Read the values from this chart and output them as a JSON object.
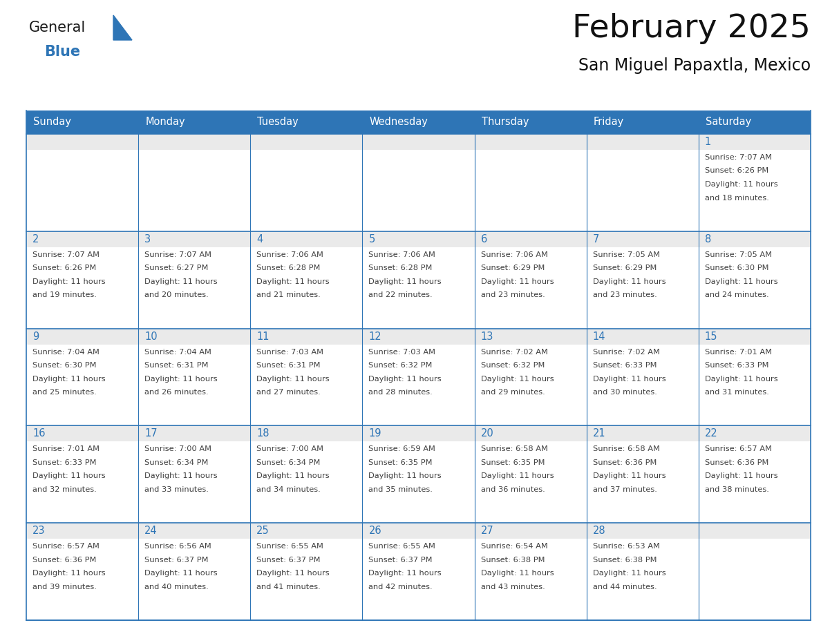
{
  "title": "February 2025",
  "subtitle": "San Miguel Papaxtla, Mexico",
  "header_bg": "#2E75B6",
  "header_text_color": "#FFFFFF",
  "header_days": [
    "Sunday",
    "Monday",
    "Tuesday",
    "Wednesday",
    "Thursday",
    "Friday",
    "Saturday"
  ],
  "cell_border_color": "#2E75B6",
  "day_number_color": "#2E75B6",
  "cell_text_color": "#404040",
  "day_strip_color": "#EAEAEA",
  "background_color": "#FFFFFF",
  "logo_general_color": "#1a1a1a",
  "logo_blue_color": "#2E75B6",
  "calendar_data": [
    [
      null,
      null,
      null,
      null,
      null,
      null,
      {
        "day": 1,
        "sunrise": "7:07 AM",
        "sunset": "6:26 PM",
        "daylight_hours": 11,
        "daylight_minutes": 18
      }
    ],
    [
      {
        "day": 2,
        "sunrise": "7:07 AM",
        "sunset": "6:26 PM",
        "daylight_hours": 11,
        "daylight_minutes": 19
      },
      {
        "day": 3,
        "sunrise": "7:07 AM",
        "sunset": "6:27 PM",
        "daylight_hours": 11,
        "daylight_minutes": 20
      },
      {
        "day": 4,
        "sunrise": "7:06 AM",
        "sunset": "6:28 PM",
        "daylight_hours": 11,
        "daylight_minutes": 21
      },
      {
        "day": 5,
        "sunrise": "7:06 AM",
        "sunset": "6:28 PM",
        "daylight_hours": 11,
        "daylight_minutes": 22
      },
      {
        "day": 6,
        "sunrise": "7:06 AM",
        "sunset": "6:29 PM",
        "daylight_hours": 11,
        "daylight_minutes": 23
      },
      {
        "day": 7,
        "sunrise": "7:05 AM",
        "sunset": "6:29 PM",
        "daylight_hours": 11,
        "daylight_minutes": 23
      },
      {
        "day": 8,
        "sunrise": "7:05 AM",
        "sunset": "6:30 PM",
        "daylight_hours": 11,
        "daylight_minutes": 24
      }
    ],
    [
      {
        "day": 9,
        "sunrise": "7:04 AM",
        "sunset": "6:30 PM",
        "daylight_hours": 11,
        "daylight_minutes": 25
      },
      {
        "day": 10,
        "sunrise": "7:04 AM",
        "sunset": "6:31 PM",
        "daylight_hours": 11,
        "daylight_minutes": 26
      },
      {
        "day": 11,
        "sunrise": "7:03 AM",
        "sunset": "6:31 PM",
        "daylight_hours": 11,
        "daylight_minutes": 27
      },
      {
        "day": 12,
        "sunrise": "7:03 AM",
        "sunset": "6:32 PM",
        "daylight_hours": 11,
        "daylight_minutes": 28
      },
      {
        "day": 13,
        "sunrise": "7:02 AM",
        "sunset": "6:32 PM",
        "daylight_hours": 11,
        "daylight_minutes": 29
      },
      {
        "day": 14,
        "sunrise": "7:02 AM",
        "sunset": "6:33 PM",
        "daylight_hours": 11,
        "daylight_minutes": 30
      },
      {
        "day": 15,
        "sunrise": "7:01 AM",
        "sunset": "6:33 PM",
        "daylight_hours": 11,
        "daylight_minutes": 31
      }
    ],
    [
      {
        "day": 16,
        "sunrise": "7:01 AM",
        "sunset": "6:33 PM",
        "daylight_hours": 11,
        "daylight_minutes": 32
      },
      {
        "day": 17,
        "sunrise": "7:00 AM",
        "sunset": "6:34 PM",
        "daylight_hours": 11,
        "daylight_minutes": 33
      },
      {
        "day": 18,
        "sunrise": "7:00 AM",
        "sunset": "6:34 PM",
        "daylight_hours": 11,
        "daylight_minutes": 34
      },
      {
        "day": 19,
        "sunrise": "6:59 AM",
        "sunset": "6:35 PM",
        "daylight_hours": 11,
        "daylight_minutes": 35
      },
      {
        "day": 20,
        "sunrise": "6:58 AM",
        "sunset": "6:35 PM",
        "daylight_hours": 11,
        "daylight_minutes": 36
      },
      {
        "day": 21,
        "sunrise": "6:58 AM",
        "sunset": "6:36 PM",
        "daylight_hours": 11,
        "daylight_minutes": 37
      },
      {
        "day": 22,
        "sunrise": "6:57 AM",
        "sunset": "6:36 PM",
        "daylight_hours": 11,
        "daylight_minutes": 38
      }
    ],
    [
      {
        "day": 23,
        "sunrise": "6:57 AM",
        "sunset": "6:36 PM",
        "daylight_hours": 11,
        "daylight_minutes": 39
      },
      {
        "day": 24,
        "sunrise": "6:56 AM",
        "sunset": "6:37 PM",
        "daylight_hours": 11,
        "daylight_minutes": 40
      },
      {
        "day": 25,
        "sunrise": "6:55 AM",
        "sunset": "6:37 PM",
        "daylight_hours": 11,
        "daylight_minutes": 41
      },
      {
        "day": 26,
        "sunrise": "6:55 AM",
        "sunset": "6:37 PM",
        "daylight_hours": 11,
        "daylight_minutes": 42
      },
      {
        "day": 27,
        "sunrise": "6:54 AM",
        "sunset": "6:38 PM",
        "daylight_hours": 11,
        "daylight_minutes": 43
      },
      {
        "day": 28,
        "sunrise": "6:53 AM",
        "sunset": "6:38 PM",
        "daylight_hours": 11,
        "daylight_minutes": 44
      },
      null
    ]
  ]
}
